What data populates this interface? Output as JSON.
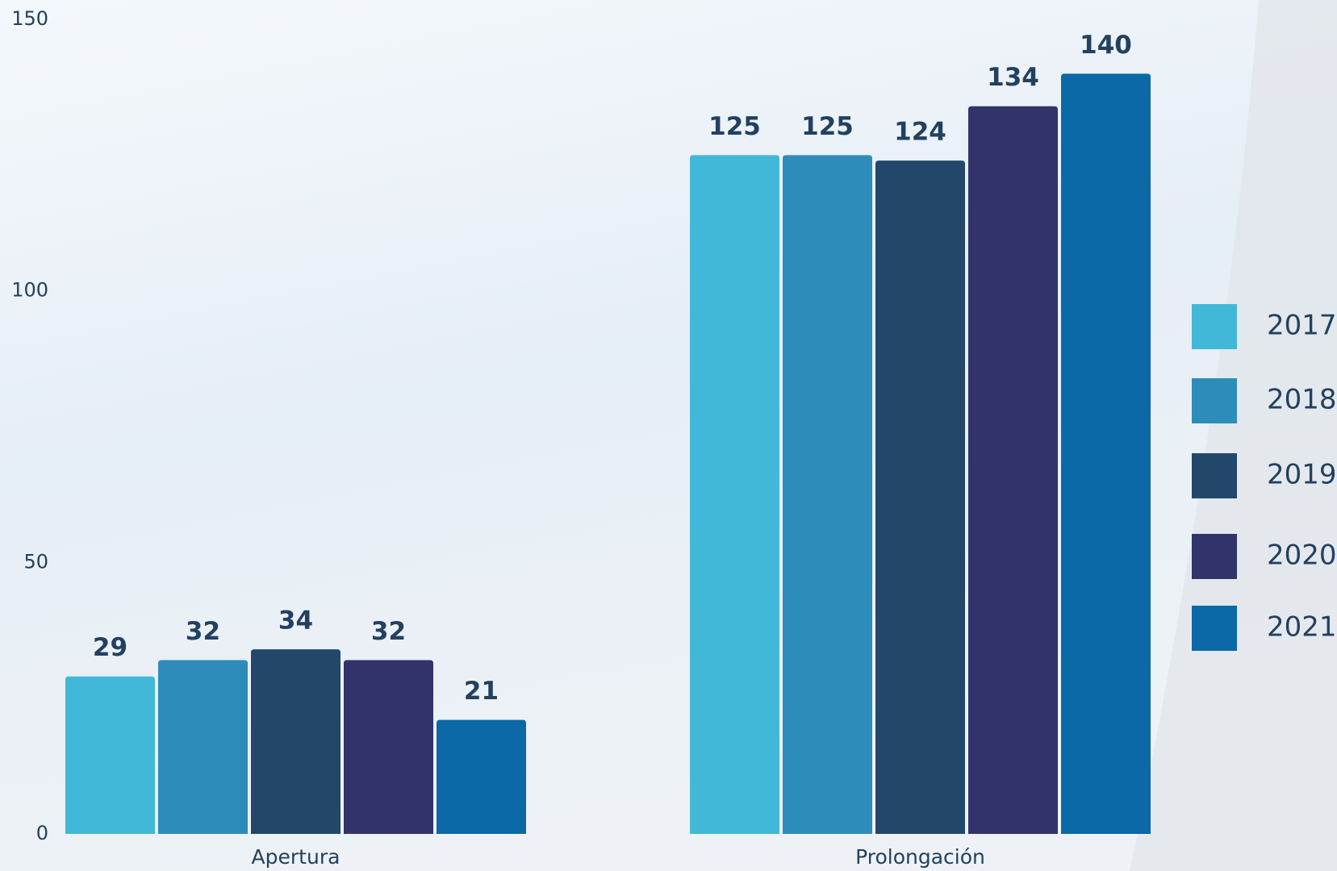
{
  "chart_data": {
    "type": "bar",
    "categories": [
      "Apertura",
      "Prolongación"
    ],
    "series": [
      {
        "name": "2017",
        "color": "#42b8d8",
        "values": [
          29,
          125
        ]
      },
      {
        "name": "2018",
        "color": "#2e8cba",
        "values": [
          32,
          125
        ]
      },
      {
        "name": "2019",
        "color": "#22476a",
        "values": [
          34,
          124
        ]
      },
      {
        "name": "2020",
        "color": "#31336a",
        "values": [
          32,
          134
        ]
      },
      {
        "name": "2021",
        "color": "#0a69a6",
        "values": [
          21,
          140
        ]
      }
    ],
    "ylim": [
      0,
      150
    ],
    "yticks": [
      0,
      50,
      100,
      150
    ],
    "grid": false,
    "legend": "right"
  }
}
